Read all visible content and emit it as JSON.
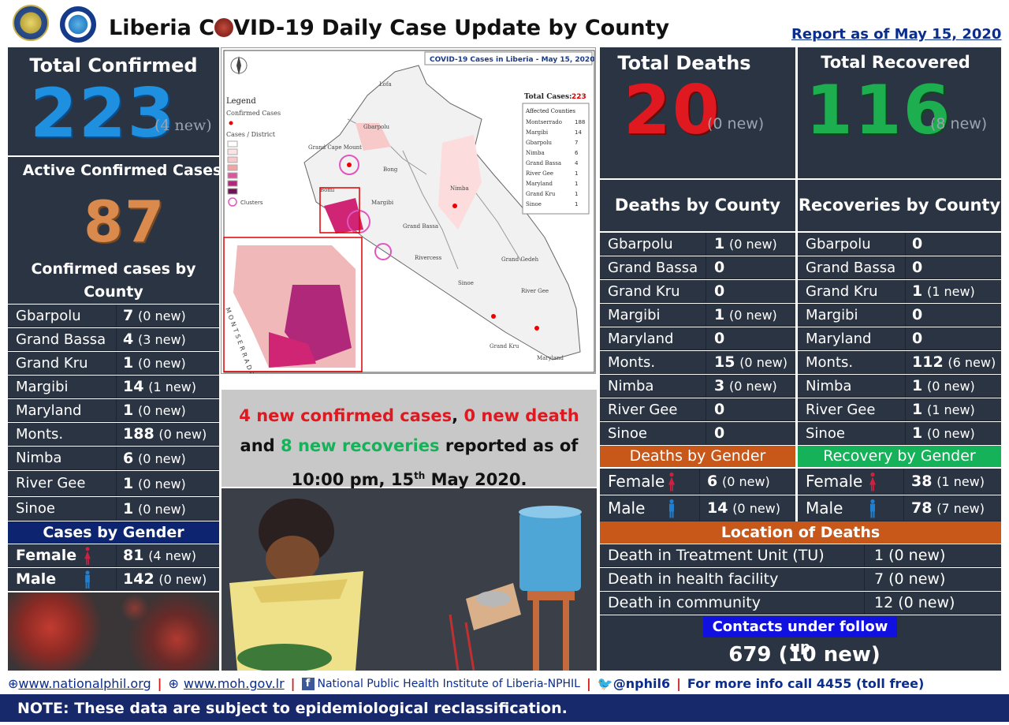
{
  "header": {
    "title_part1": "Liberia C",
    "title_part2": "VID-19 Daily Case Update by County",
    "report_date": "Report as of May 15, 2020"
  },
  "confirmed": {
    "label": "Total Confirmed",
    "value": "223",
    "new": "(4 new)"
  },
  "active": {
    "label": "Active Confirmed Cases",
    "value": "87"
  },
  "deaths": {
    "label": "Total Deaths",
    "value": "20",
    "new": "(0 new)"
  },
  "recovered": {
    "label": "Total Recovered",
    "value": "116",
    "new": "(8 new)"
  },
  "confirmed_by_county": {
    "title_line1": "Confirmed cases by",
    "title_line2": "County",
    "rows": [
      {
        "name": "Gbarpolu",
        "value": "7",
        "new": "(0 new)"
      },
      {
        "name": "Grand Bassa",
        "value": "4",
        "new": "(3 new)"
      },
      {
        "name": "Grand Kru",
        "value": "1",
        "new": "(0 new)"
      },
      {
        "name": "Margibi",
        "value": "14",
        "new": "(1 new)"
      },
      {
        "name": "Maryland",
        "value": "1",
        "new": "(0 new)"
      },
      {
        "name": "Monts.",
        "value": "188",
        "new": "(0 new)"
      },
      {
        "name": "Nimba",
        "value": "6",
        "new": "(0 new)"
      },
      {
        "name": "River Gee",
        "value": "1",
        "new": "(0 new)"
      },
      {
        "name": "Sinoe",
        "value": "1",
        "new": "(0 new)"
      }
    ]
  },
  "cases_by_gender": {
    "title": "Cases by Gender",
    "rows": [
      {
        "name": "Female",
        "value": "81",
        "new": "(4 new)"
      },
      {
        "name": "Male",
        "value": "142",
        "new": "(0  new)"
      }
    ]
  },
  "deaths_by_county": {
    "title": "Deaths by County",
    "rows": [
      {
        "name": "Gbarpolu",
        "value": "1",
        "new": "(0 new)"
      },
      {
        "name": "Grand Bassa",
        "value": "0",
        "new": ""
      },
      {
        "name": "Grand Kru",
        "value": "0",
        "new": ""
      },
      {
        "name": "Margibi",
        "value": "1",
        "new": "(0 new)"
      },
      {
        "name": "Maryland",
        "value": "0",
        "new": ""
      },
      {
        "name": "Monts.",
        "value": "15",
        "new": "(0 new)"
      },
      {
        "name": "Nimba",
        "value": "3",
        "new": "(0 new)"
      },
      {
        "name": "River Gee",
        "value": "0",
        "new": ""
      },
      {
        "name": "Sinoe",
        "value": "0",
        "new": ""
      }
    ]
  },
  "recoveries_by_county": {
    "title": "Recoveries by County",
    "rows": [
      {
        "name": "Gbarpolu",
        "value": "0",
        "new": ""
      },
      {
        "name": "Grand Bassa",
        "value": "0",
        "new": ""
      },
      {
        "name": "Grand Kru",
        "value": "1",
        "new": "(1 new)"
      },
      {
        "name": "Margibi",
        "value": "0",
        "new": ""
      },
      {
        "name": "Maryland",
        "value": "0",
        "new": ""
      },
      {
        "name": "Monts.",
        "value": "112",
        "new": "(6 new)"
      },
      {
        "name": "Nimba",
        "value": "1",
        "new": "(0 new)"
      },
      {
        "name": "River Gee",
        "value": "1",
        "new": "(1 new)"
      },
      {
        "name": "Sinoe",
        "value": "1",
        "new": "(0 new)"
      }
    ]
  },
  "deaths_by_gender": {
    "title": "Deaths by Gender",
    "rows": [
      {
        "name": "Female",
        "value": "6",
        "new": "(0 new)"
      },
      {
        "name": "Male",
        "value": "14",
        "new": "(0 new)"
      }
    ]
  },
  "recovery_by_gender": {
    "title": "Recovery by Gender",
    "rows": [
      {
        "name": "Female",
        "value": "38",
        "new": "(1 new)"
      },
      {
        "name": "Male",
        "value": "78",
        "new": "(7 new)"
      }
    ]
  },
  "location_of_deaths": {
    "title": "Location of Deaths",
    "rows": [
      {
        "name": "Death in Treatment Unit (TU)",
        "value": "1 (0 new)"
      },
      {
        "name": "Death in health facility",
        "value": "7 (0 new)"
      },
      {
        "name": "Death in community",
        "value": "12 (0 new)"
      }
    ]
  },
  "contacts": {
    "title": "Contacts under follow up",
    "value": "679 (10 new)"
  },
  "summary": {
    "part1": "4 new confirmed cases",
    "part2": ", ",
    "part3": "0 new death",
    "part4": " and ",
    "part5": "8 new recoveries",
    "part6": " reported as of 10:00 pm, 15",
    "sup": "th",
    "part7": " May 2020."
  },
  "map": {
    "title": "COVID-19 Cases in Liberia - May 15, 2020",
    "legend_title": "Legend",
    "legend_confirmed": "Confirmed Cases",
    "legend_district": "Cases / District",
    "legend_clusters": "Clusters",
    "total_cases_label": "Total Cases:",
    "total_cases_value": "223",
    "affected_title": "Affected Counties",
    "affected": [
      {
        "name": "Montserrado",
        "value": "188"
      },
      {
        "name": "Margibi",
        "value": "14"
      },
      {
        "name": "Gbarpolu",
        "value": "7"
      },
      {
        "name": "Nimba",
        "value": "6"
      },
      {
        "name": "Grand Bassa",
        "value": "4"
      },
      {
        "name": "River Gee",
        "value": "1"
      },
      {
        "name": "Maryland",
        "value": "1"
      },
      {
        "name": "Grand Kru",
        "value": "1"
      },
      {
        "name": "Sinoe",
        "value": "1"
      }
    ],
    "counties": [
      "Lofa",
      "Gbarpolu",
      "Grand Cape Mount",
      "Bong",
      "Bomi",
      "Margibi",
      "Nimba",
      "Grand Bassa",
      "Rivercess",
      "Sinoe",
      "Grand Gedeh",
      "River Gee",
      "Grand Kru",
      "Maryland",
      "Montserrado"
    ]
  },
  "footer": {
    "link1": "www.nationalphil.org",
    "link2": "www.moh.gov.lr",
    "link3": "National Public Health Institute of Liberia-NPHIL",
    "link4": "@nphil6",
    "link5": "For more info call 4455 (toll free)",
    "note": "NOTE: These data are subject to epidemiological reclassification."
  },
  "colors": {
    "panel": "#2b3442",
    "confirmed_blue": "#1f8fe0",
    "active_orange": "#d98a4c",
    "deaths_red": "#e0181f",
    "recovered_green": "#1cae4f",
    "accent_orange": "#c8581a",
    "accent_green": "#16b25a",
    "gender_navy": "#0d2470",
    "contacts_blue": "#1010e0"
  }
}
